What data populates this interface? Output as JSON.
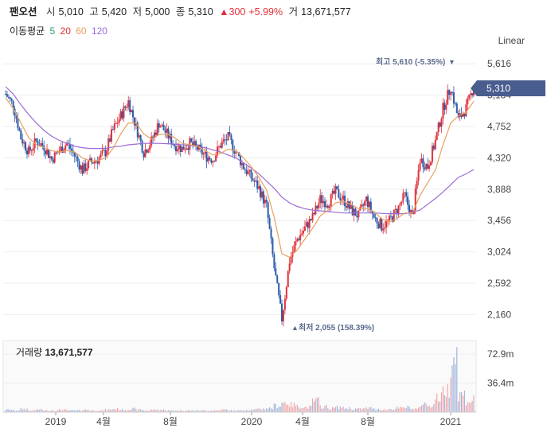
{
  "header": {
    "name": "팬오션",
    "open_label": "시",
    "open": "5,010",
    "high_label": "고",
    "high": "5,420",
    "low_label": "저",
    "low": "5,000",
    "close_label": "종",
    "close": "5,310",
    "change": "▲300",
    "change_pct": "+5.99%",
    "volume_label": "거",
    "volume": "13,671,577"
  },
  "ma_legend": {
    "title": "이동평균",
    "items": [
      {
        "label": "5",
        "color": "#2e9e6e"
      },
      {
        "label": "20",
        "color": "#e0313b"
      },
      {
        "label": "60",
        "color": "#e8a060"
      },
      {
        "label": "120",
        "color": "#9b6bd6"
      }
    ]
  },
  "scale_button": "Linear",
  "current_price": "5,310",
  "max_marker": "최고 5,610 (-5.35%)",
  "min_marker": "최저 2,055 (158.39%)",
  "volume_header": {
    "label": "거래량",
    "value": "13,671,577"
  },
  "colors": {
    "up": "#e0313b",
    "down": "#2b5cab",
    "ma5": "#2e9e6e",
    "ma20": "#e8a060",
    "ma120": "#9b6bd6",
    "grid": "#eeeeee",
    "axis_text": "#444444",
    "badge": "#4a5d8f"
  },
  "chart_data": {
    "type": "candlestick",
    "x_axis_labels": [
      "2019",
      "4월",
      "8월",
      "2020",
      "4월",
      "8월",
      "2021"
    ],
    "y_axis_labels": [
      "5,616",
      "5,184",
      "4,752",
      "4,320",
      "3,888",
      "3,456",
      "3,024",
      "2,592",
      "2,160"
    ],
    "ylim": [
      2000,
      5750
    ],
    "volume_axis_labels": [
      "72.9m",
      "36.4m"
    ],
    "volume_ylim": [
      0,
      90
    ],
    "close_series": [
      5200,
      5050,
      4600,
      4400,
      4550,
      4480,
      4300,
      4420,
      4520,
      4350,
      4150,
      4250,
      4300,
      4400,
      4700,
      4900,
      5100,
      4750,
      4400,
      4550,
      4800,
      4650,
      4500,
      4450,
      4520,
      4450,
      4350,
      4300,
      4500,
      4600,
      4400,
      4200,
      4050,
      3900,
      3650,
      2800,
      2100,
      2900,
      3200,
      3350,
      3500,
      3750,
      3700,
      3850,
      3750,
      3600,
      3520,
      3750,
      3500,
      3380,
      3450,
      3600,
      3800,
      3500,
      4300,
      4200,
      4550,
      5000,
      5300,
      4850,
      5000,
      5310
    ],
    "ma120_series": [
      5300,
      5200,
      5050,
      4920,
      4800,
      4700,
      4620,
      4560,
      4520,
      4480,
      4460,
      4450,
      4450,
      4450,
      4470,
      4480,
      4500,
      4510,
      4520,
      4520,
      4520,
      4515,
      4510,
      4500,
      4490,
      4480,
      4460,
      4430,
      4400,
      4360,
      4320,
      4250,
      4180,
      4100,
      4000,
      3900,
      3780,
      3700,
      3650,
      3620,
      3600,
      3590,
      3580,
      3570,
      3560,
      3560,
      3560,
      3560,
      3560,
      3555,
      3550,
      3550,
      3550,
      3570,
      3600,
      3680,
      3760,
      3850,
      3950,
      4050,
      4100,
      4160
    ],
    "ma20_series": [
      5150,
      5000,
      4800,
      4600,
      4500,
      4460,
      4420,
      4400,
      4420,
      4400,
      4320,
      4280,
      4280,
      4320,
      4450,
      4650,
      4800,
      4800,
      4650,
      4580,
      4640,
      4650,
      4600,
      4520,
      4500,
      4480,
      4420,
      4360,
      4380,
      4440,
      4420,
      4320,
      4200,
      4050,
      3880,
      3500,
      3000,
      2950,
      3050,
      3200,
      3350,
      3520,
      3600,
      3700,
      3720,
      3680,
      3620,
      3620,
      3580,
      3480,
      3440,
      3480,
      3560,
      3560,
      3800,
      3980,
      4150,
      4500,
      4800,
      4900,
      4950,
      5100
    ],
    "volume_series": [
      3,
      2,
      4,
      2,
      3,
      2,
      2,
      3,
      2,
      2,
      3,
      2,
      2,
      3,
      4,
      3,
      4,
      3,
      2,
      3,
      3,
      2,
      2,
      2,
      2,
      2,
      2,
      2,
      3,
      2,
      2,
      3,
      3,
      4,
      5,
      8,
      12,
      9,
      7,
      6,
      14,
      7,
      5,
      6,
      5,
      4,
      4,
      5,
      4,
      3,
      4,
      5,
      6,
      4,
      10,
      9,
      18,
      28,
      72,
      22,
      14,
      16
    ]
  }
}
